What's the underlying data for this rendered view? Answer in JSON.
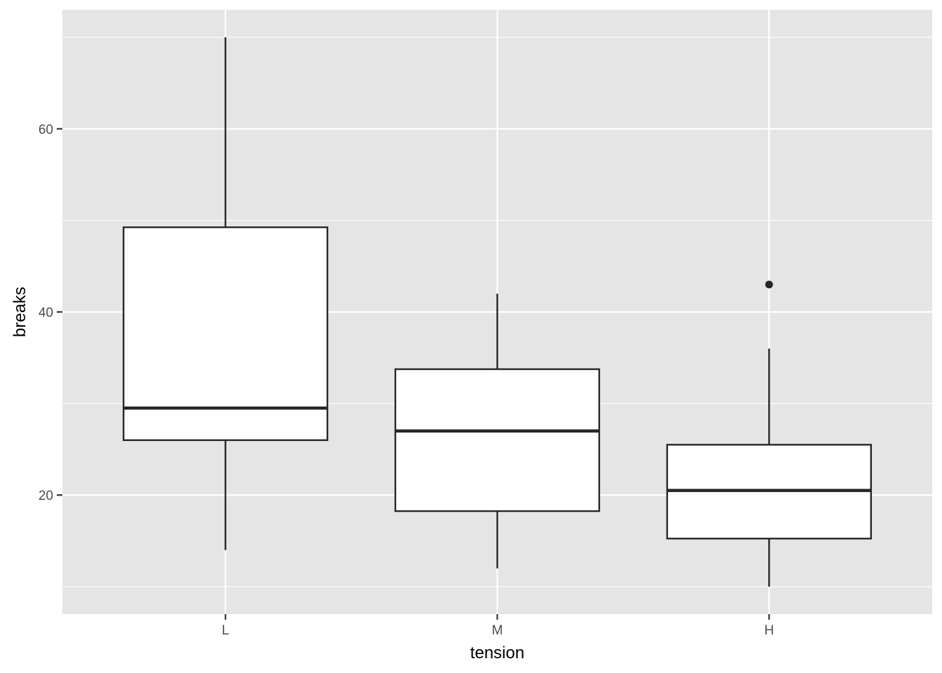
{
  "chart_data": {
    "type": "boxplot",
    "xlabel": "tension",
    "ylabel": "breaks",
    "categories": [
      "L",
      "M",
      "H"
    ],
    "ylim": [
      7,
      73
    ],
    "y_ticks": [
      20,
      40,
      60
    ],
    "y_tick_labels": [
      "20",
      "40",
      "60"
    ],
    "grid": true,
    "boxes": [
      {
        "category": "L",
        "whisker_low": 14,
        "q1": 26,
        "median": 29.5,
        "q3": 49.25,
        "whisker_high": 70,
        "outliers": []
      },
      {
        "category": "M",
        "whisker_low": 12,
        "q1": 18.25,
        "median": 27,
        "q3": 33.75,
        "whisker_high": 42,
        "outliers": []
      },
      {
        "category": "H",
        "whisker_low": 10,
        "q1": 15.25,
        "median": 20.5,
        "q3": 25.5,
        "whisker_high": 36,
        "outliers": [
          43
        ]
      }
    ],
    "colors": {
      "panel_background": "#e5e5e5",
      "grid_line": "#ffffff",
      "box_fill": "#ffffff",
      "box_stroke": "#262626",
      "tick_text": "#4d4d4d",
      "tick_mark": "#333333"
    }
  }
}
